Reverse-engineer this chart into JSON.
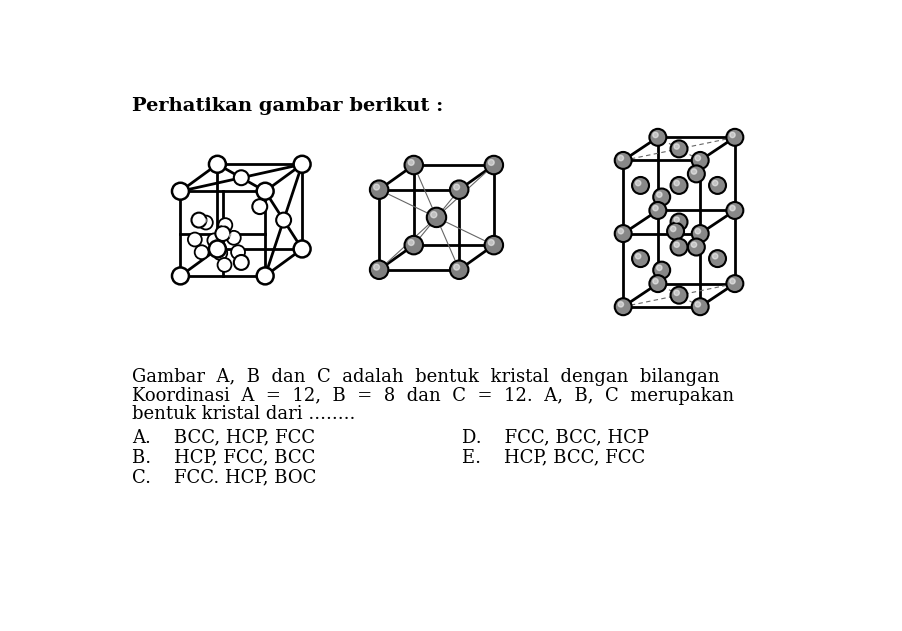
{
  "title": "Perhatikan gambar berikut :",
  "desc1": "Gambar  A,  B  dan  C  adalah  bentuk  kristal  dengan  bilangan",
  "desc2": "Koordinasi  A  =  12,  B  =  8  dan  C  =  12.  A,  B,  C  merupakan",
  "desc3": "bentuk kristal dari ........",
  "choice_A": "A.    BCC, HCP, FCC",
  "choice_B": "B.    HCP, FCC, BCC",
  "choice_C": "C.    FCC. HCP, BOC",
  "choice_D": "D.    FCC, BCC, HCP",
  "choice_E": "E.    HCP, BCC, FCC",
  "bg_color": "#ffffff",
  "line_color": "#000000",
  "diag_color": "#666666",
  "atom_fcc": "#ffffff",
  "atom_bcc": "#808080",
  "atom_hcp": "#888888",
  "atom_edge": "#000000",
  "lw_thick": 2.0,
  "lw_thin": 1.0,
  "r_fcc": 11,
  "r_bcc": 12,
  "r_hcp": 11,
  "font_title": 14,
  "font_body": 13,
  "font_choice": 13
}
